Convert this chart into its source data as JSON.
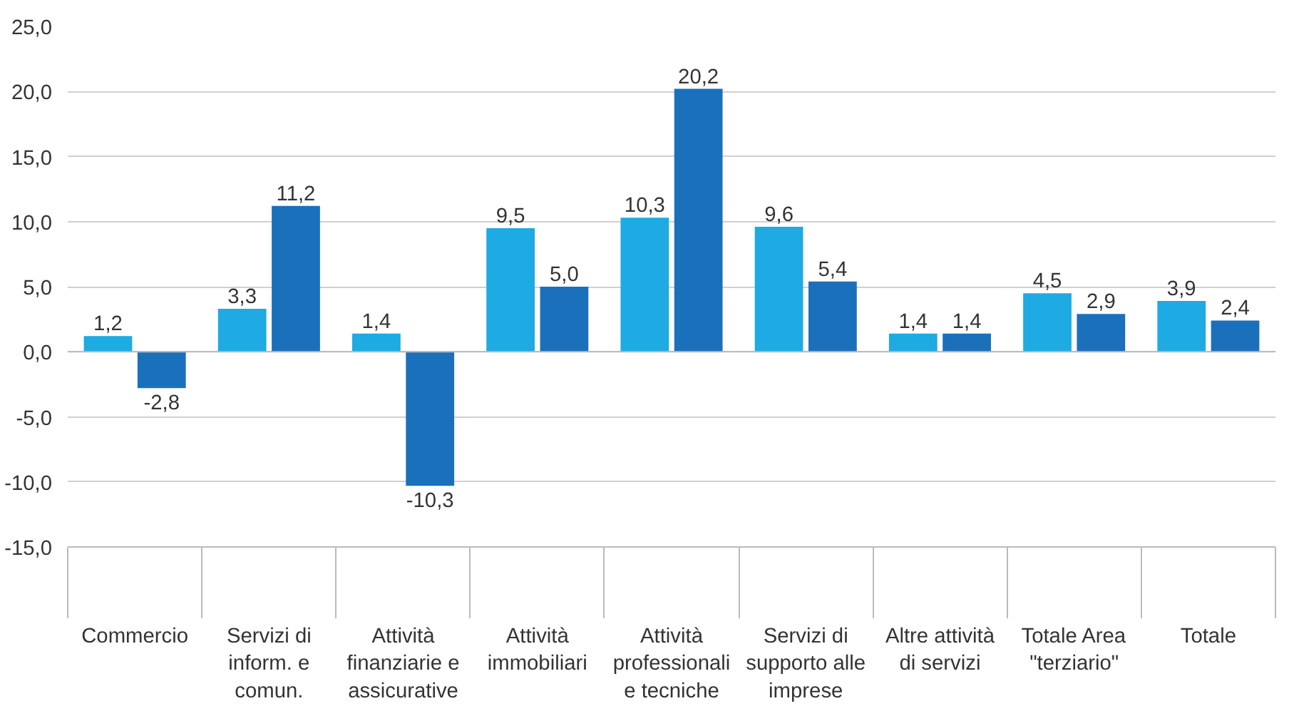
{
  "chart_data": {
    "type": "bar",
    "categories": [
      "Commercio",
      "Servizi di inform. e comun.",
      "Attività finanziarie e assicurative",
      "Attività immobiliari",
      "Attività professionali e tecniche",
      "Servizi di supporto alle imprese",
      "Altre attività di servizi",
      "Totale Area \"terziario\"",
      "Totale"
    ],
    "series": [
      {
        "color": "#1eaae2",
        "values": [
          1.2,
          3.3,
          1.4,
          9.5,
          10.3,
          9.6,
          1.4,
          4.5,
          3.9
        ],
        "value_labels": [
          "1,2",
          "3,3",
          "1,4",
          "9,5",
          "10,3",
          "9,6",
          "1,4",
          "4,5",
          "3,9"
        ]
      },
      {
        "color": "#1b70bb",
        "values": [
          -2.8,
          11.2,
          -10.3,
          5.0,
          20.2,
          5.4,
          1.4,
          2.9,
          2.4
        ],
        "value_labels": [
          "-2,8",
          "11,2",
          "-10,3",
          "5,0",
          "20,2",
          "5,4",
          "1,4",
          "2,9",
          "2,4"
        ]
      }
    ],
    "ylim": [
      -15,
      25
    ],
    "yticks": [
      {
        "value": -15,
        "label": "-15,0"
      },
      {
        "value": -10,
        "label": "-10,0"
      },
      {
        "value": -5,
        "label": "-5,0"
      },
      {
        "value": 0,
        "label": "0,0"
      },
      {
        "value": 5,
        "label": "5,0"
      },
      {
        "value": 10,
        "label": "10,0"
      },
      {
        "value": 15,
        "label": "15,0"
      },
      {
        "value": 20,
        "label": "20,0"
      },
      {
        "value": 25,
        "label": "25,0"
      }
    ],
    "grid": "y"
  }
}
